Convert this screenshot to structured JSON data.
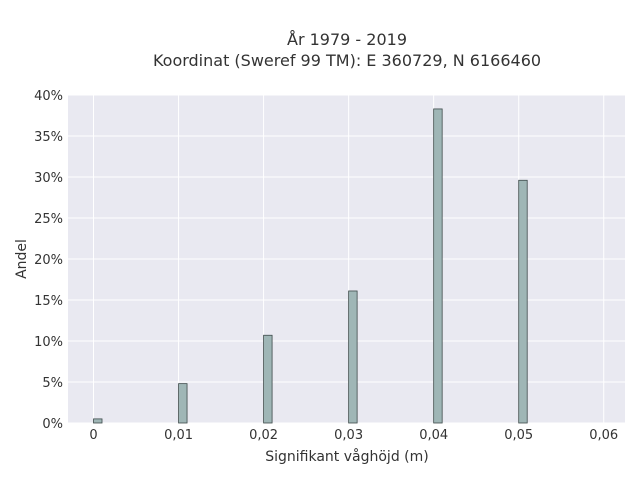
{
  "chart_data": {
    "type": "bar",
    "title_line1": "År 1979 - 2019",
    "title_line2": "Koordinat (Sweref 99 TM): E 360729, N 6166460",
    "xlabel": "Signifikant våghöjd (m)",
    "ylabel": "Andel",
    "x": [
      0.0,
      0.01,
      0.02,
      0.03,
      0.04,
      0.05
    ],
    "values": [
      0.5,
      4.8,
      10.7,
      16.1,
      38.3,
      29.6
    ],
    "bin_width": 0.001,
    "xlim": [
      -0.003,
      0.0625
    ],
    "ylim": [
      0,
      40
    ],
    "xticks": [
      0,
      0.01,
      0.02,
      0.03,
      0.04,
      0.05,
      0.06
    ],
    "xtick_labels": [
      "0",
      "0,01",
      "0,02",
      "0,03",
      "0,04",
      "0,05",
      "0,06"
    ],
    "yticks": [
      0,
      5,
      10,
      15,
      20,
      25,
      30,
      35,
      40
    ],
    "ytick_labels": [
      "0%",
      "5%",
      "10%",
      "15%",
      "20%",
      "25%",
      "30%",
      "35%",
      "40%"
    ],
    "grid": true,
    "colors": {
      "plot_bg": "#e9e9f1",
      "grid": "#ffffff",
      "bar_fill": "#9fb6b6",
      "bar_stroke": "#3d4a4a"
    }
  }
}
